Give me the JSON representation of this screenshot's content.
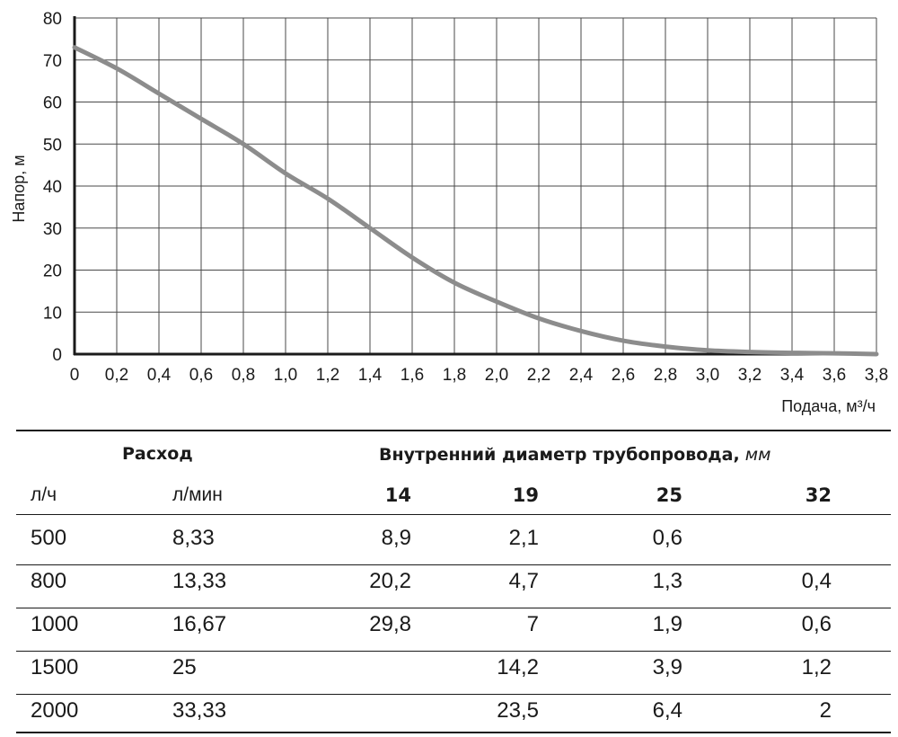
{
  "chart_data": {
    "type": "line",
    "xlabel": "Подача, м³/ч",
    "ylabel": "Напор, м",
    "xlim": [
      0,
      3.8
    ],
    "ylim": [
      0,
      80
    ],
    "x_ticks": [
      "0",
      "0,2",
      "0,4",
      "0,6",
      "0,8",
      "1,0",
      "1,2",
      "1,4",
      "1,6",
      "1,8",
      "2,0",
      "2,2",
      "2,4",
      "2,6",
      "2,8",
      "3,0",
      "3,2",
      "3,4",
      "3,6",
      "3,8"
    ],
    "y_ticks": [
      "0",
      "10",
      "20",
      "30",
      "40",
      "50",
      "60",
      "70",
      "80"
    ],
    "grid": true,
    "line_color": "#8c8c8c",
    "series": [
      {
        "x": [
          0,
          0.2,
          0.4,
          0.6,
          0.8,
          1.0,
          1.2,
          1.4,
          1.6,
          1.8,
          2.0,
          2.2,
          2.4,
          2.6,
          2.8,
          3.0,
          3.2,
          3.4,
          3.6,
          3.8
        ],
        "values": [
          73,
          68,
          62,
          56,
          50,
          43,
          37,
          30,
          23,
          17,
          12.5,
          8.5,
          5.5,
          3.2,
          1.8,
          0.9,
          0.5,
          0.3,
          0.2,
          0.0
        ]
      }
    ]
  },
  "table": {
    "group_flow": "Расход",
    "group_diameter": "Внутренний диаметр трубопровода,",
    "group_diameter_unit": "мм",
    "col_lh": "л/ч",
    "col_lmin": "л/мин",
    "diameters": [
      "14",
      "19",
      "25",
      "32"
    ],
    "rows": [
      {
        "lh": "500",
        "lmin": "8,33",
        "d14": "8,9",
        "d19": "2,1",
        "d25": "0,6",
        "d32": ""
      },
      {
        "lh": "800",
        "lmin": "13,33",
        "d14": "20,2",
        "d19": "4,7",
        "d25": "1,3",
        "d32": "0,4"
      },
      {
        "lh": "1000",
        "lmin": "16,67",
        "d14": "29,8",
        "d19": "7",
        "d25": "1,9",
        "d32": "0,6"
      },
      {
        "lh": "1500",
        "lmin": "25",
        "d14": "",
        "d19": "14,2",
        "d25": "3,9",
        "d32": "1,2"
      },
      {
        "lh": "2000",
        "lmin": "33,33",
        "d14": "",
        "d19": "23,5",
        "d25": "6,4",
        "d32": "2"
      }
    ]
  }
}
